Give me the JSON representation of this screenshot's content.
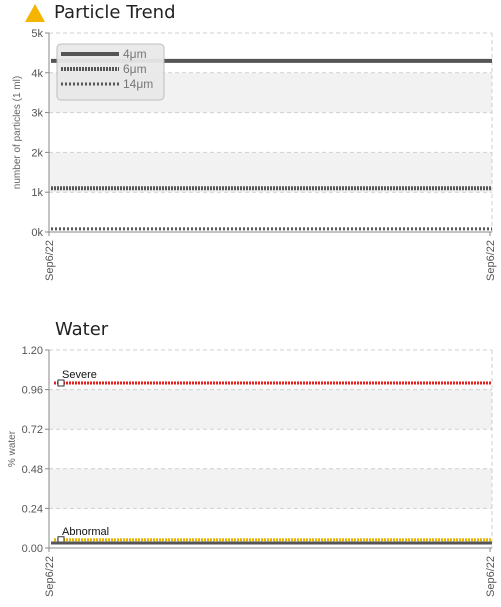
{
  "colors": {
    "warning": "#f5b400",
    "line_gray": "#555555",
    "severe": "#e0201c",
    "abnormal": "#e8b400",
    "band": "#f2f2f2",
    "grid": "#cfcfcf"
  },
  "chart_data": [
    {
      "type": "line",
      "title": "Particle Trend",
      "title_icon": "warning-triangle-icon",
      "ylabel": "number of particles (1 ml)",
      "ylim": [
        0,
        5000
      ],
      "yticks": [
        "0k",
        "1k",
        "2k",
        "3k",
        "4k",
        "5k"
      ],
      "xticks": [
        "Sep6/22",
        "Sep6/22"
      ],
      "x": [
        "Sep6/22",
        "Sep6/22"
      ],
      "grid": true,
      "legend_position": "top-left",
      "series": [
        {
          "name": "4μm",
          "values": [
            4300,
            4300
          ],
          "style": "solid"
        },
        {
          "name": "6μm",
          "values": [
            1100,
            1100
          ],
          "style": "dense-dotted"
        },
        {
          "name": "14μm",
          "values": [
            80,
            80
          ],
          "style": "dotted"
        }
      ]
    },
    {
      "type": "line",
      "title": "Water",
      "ylabel": "% water",
      "ylim": [
        0,
        1.2
      ],
      "yticks": [
        "0.00",
        "0.24",
        "0.48",
        "0.72",
        "0.96",
        "1.20"
      ],
      "xticks": [
        "Sep6/22",
        "Sep6/22"
      ],
      "x": [
        "Sep6/22",
        "Sep6/22"
      ],
      "grid": true,
      "series": [
        {
          "values": [
            0.03,
            0.03
          ],
          "style": "solid"
        }
      ],
      "thresholds": [
        {
          "label": "Severe",
          "value": 1.0
        },
        {
          "label": "Abnormal",
          "value": 0.05
        }
      ]
    }
  ]
}
